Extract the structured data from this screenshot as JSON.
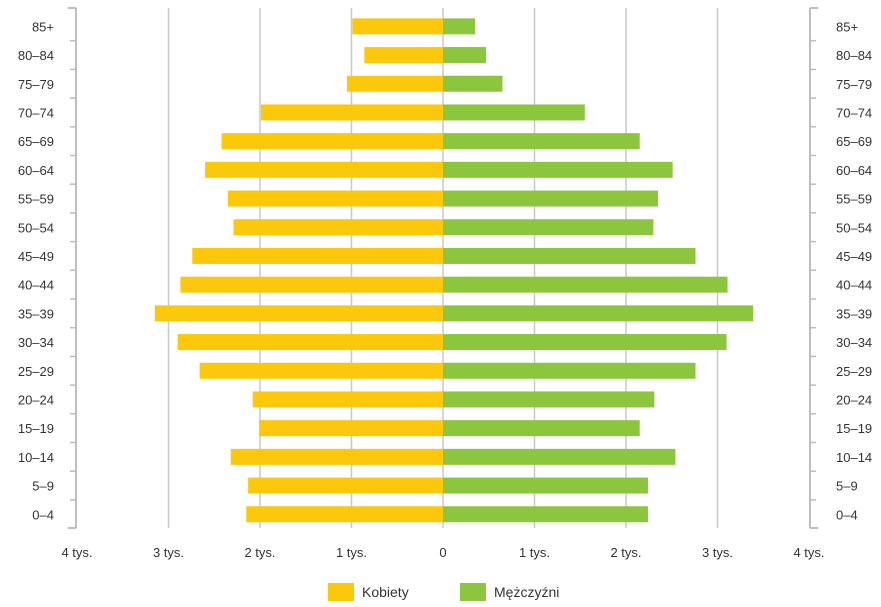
{
  "chart_data": {
    "type": "bar",
    "orientation": "horizontal",
    "subtype": "population-pyramid",
    "categories": [
      "85+",
      "80–84",
      "75–79",
      "70–74",
      "65–69",
      "60–64",
      "55–59",
      "50–54",
      "45–49",
      "40–44",
      "35–39",
      "30–34",
      "25–29",
      "20–24",
      "15–19",
      "10–14",
      "5–9",
      "0–4"
    ],
    "series": [
      {
        "name": "Kobiety",
        "side": "left",
        "color": "#fcc80c",
        "values": [
          990,
          860,
          1050,
          1990,
          2420,
          2600,
          2350,
          2290,
          2740,
          2870,
          3150,
          2900,
          2660,
          2080,
          2010,
          2320,
          2130,
          2150
        ]
      },
      {
        "name": "Mężczyźni",
        "side": "right",
        "color": "#8cc63f",
        "values": [
          350,
          470,
          650,
          1550,
          2150,
          2510,
          2350,
          2300,
          2760,
          3110,
          3390,
          3100,
          2760,
          2310,
          2150,
          2540,
          2240,
          2240
        ]
      }
    ],
    "xlim": [
      -4000,
      4000
    ],
    "x_ticks": [
      {
        "value": -4000,
        "label": "4 tys."
      },
      {
        "value": -3000,
        "label": "3 tys."
      },
      {
        "value": -2000,
        "label": "2 tys."
      },
      {
        "value": -1000,
        "label": "1 tys."
      },
      {
        "value": 0,
        "label": "0"
      },
      {
        "value": 1000,
        "label": "1 tys."
      },
      {
        "value": 2000,
        "label": "2 tys."
      },
      {
        "value": 3000,
        "label": "3 tys."
      },
      {
        "value": 4000,
        "label": "4 tys."
      }
    ],
    "grid": true,
    "legend_position": "bottom-center",
    "title": "",
    "xlabel": "",
    "ylabel": ""
  },
  "legend": {
    "women_label": "Kobiety",
    "men_label": "Mężczyźni"
  }
}
